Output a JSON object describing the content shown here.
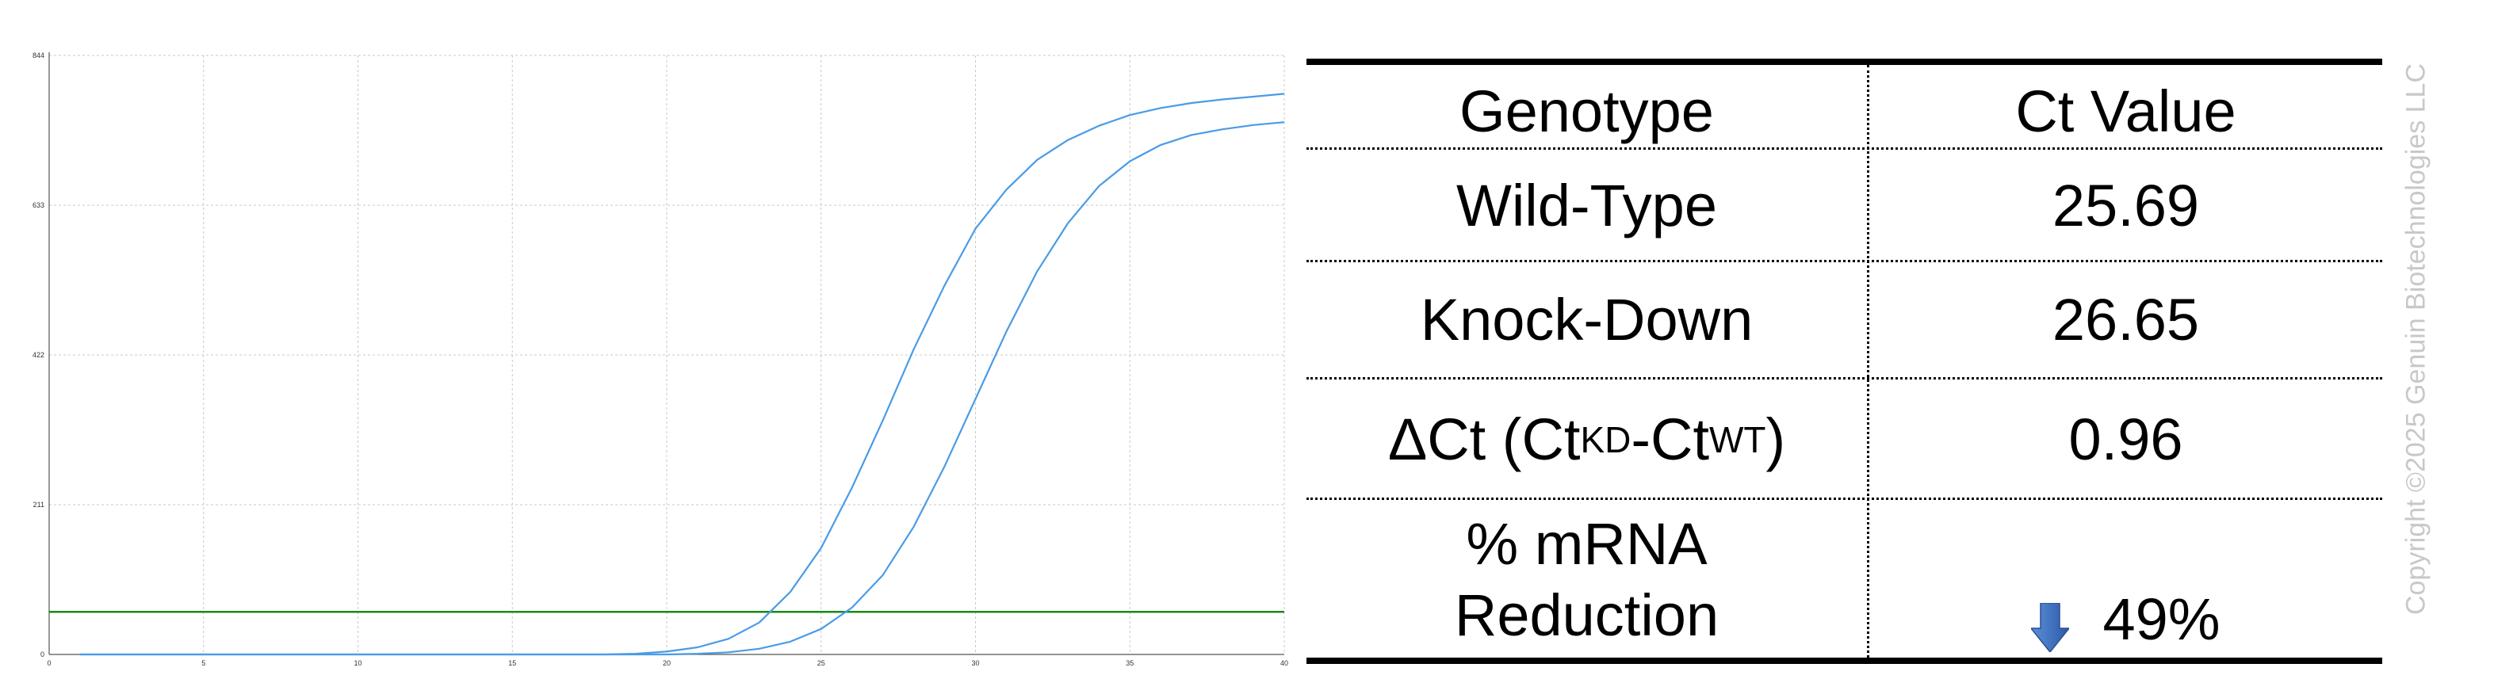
{
  "chart_data": {
    "type": "line",
    "title": "",
    "xlabel": "",
    "ylabel": "",
    "xlim": [
      0,
      40
    ],
    "ylim": [
      0,
      844
    ],
    "x_ticks": [
      0,
      5,
      10,
      15,
      20,
      25,
      30,
      35,
      40
    ],
    "y_ticks": [
      0,
      211,
      422,
      633,
      844
    ],
    "grid": true,
    "threshold": 60,
    "threshold_color": "#1a8a1a",
    "series_color": "#4a9be6",
    "series": [
      {
        "x": [
          1,
          2,
          3,
          4,
          5,
          6,
          7,
          8,
          9,
          10,
          11,
          12,
          13,
          14,
          15,
          16,
          17,
          18,
          19,
          20,
          21,
          22,
          23,
          24,
          25,
          26,
          27,
          28,
          29,
          30,
          31,
          32,
          33,
          34,
          35,
          36,
          37,
          38,
          39,
          40
        ],
        "values": [
          0,
          0,
          0,
          0,
          0,
          0,
          0,
          0,
          0,
          0,
          0,
          0,
          0,
          0,
          0,
          0,
          0,
          0,
          1,
          4,
          10,
          22,
          45,
          88,
          150,
          235,
          330,
          430,
          520,
          600,
          655,
          697,
          725,
          745,
          760,
          770,
          777,
          782,
          786,
          790
        ]
      },
      {
        "x": [
          1,
          2,
          3,
          4,
          5,
          6,
          7,
          8,
          9,
          10,
          11,
          12,
          13,
          14,
          15,
          16,
          17,
          18,
          19,
          20,
          21,
          22,
          23,
          24,
          25,
          26,
          27,
          28,
          29,
          30,
          31,
          32,
          33,
          34,
          35,
          36,
          37,
          38,
          39,
          40
        ],
        "values": [
          0,
          0,
          0,
          0,
          0,
          0,
          0,
          0,
          0,
          0,
          0,
          0,
          0,
          0,
          0,
          0,
          0,
          0,
          0,
          0,
          1,
          3,
          8,
          18,
          36,
          66,
          112,
          180,
          265,
          360,
          455,
          540,
          608,
          660,
          695,
          718,
          732,
          740,
          746,
          750
        ]
      }
    ]
  },
  "table": {
    "headers": {
      "genotype": "Genotype",
      "ct_value": "Ct Value"
    },
    "rows": [
      {
        "genotype": "Wild-Type",
        "ct_value": "25.69"
      },
      {
        "genotype": "Knock-Down",
        "ct_value": "26.65"
      }
    ],
    "delta_row": {
      "label_prefix": "ΔCt (Ct",
      "sub_kd": "KD",
      "dash": "-Ct",
      "sub_wt": "WT",
      "label_suffix": ")",
      "value": "0.96"
    },
    "reduction_row": {
      "label_line1": "% mRNA",
      "label_line2": "Reduction",
      "value": "49%",
      "arrow_icon": "down-arrow-icon",
      "arrow_color": "#3a6fc4"
    }
  },
  "copyright": "Copyright ©2025 Genuin Biotechnologies LLC"
}
